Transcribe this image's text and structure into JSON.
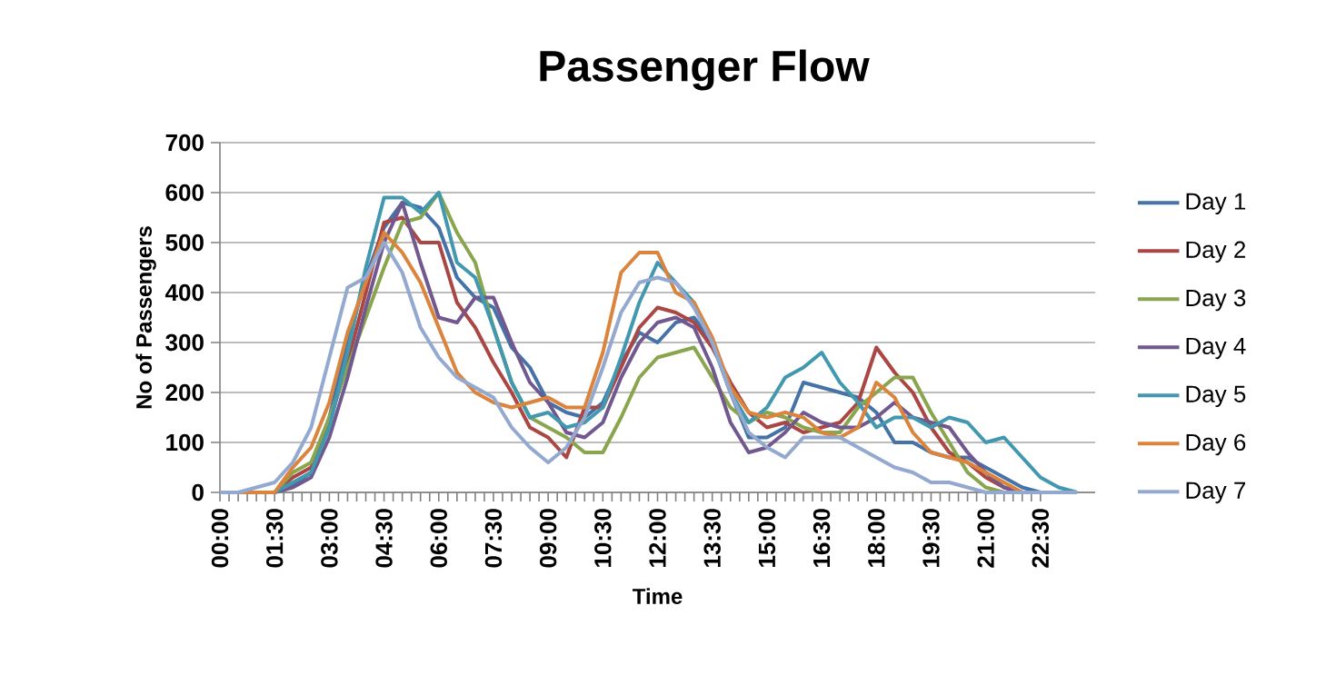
{
  "chart_data": {
    "type": "line",
    "title": "Passenger Flow",
    "xlabel": "Time",
    "ylabel": "No of Passengers",
    "x": [
      0,
      0.5,
      1,
      1.5,
      2,
      2.5,
      3,
      3.5,
      4,
      4.5,
      5,
      5.5,
      6,
      6.5,
      7,
      7.5,
      8,
      8.5,
      9,
      9.5,
      10,
      10.5,
      11,
      11.5,
      12,
      12.5,
      13,
      13.5,
      14,
      14.5,
      15,
      15.5,
      16,
      16.5,
      17,
      17.5,
      18,
      18.5,
      19,
      19.5,
      20,
      20.5,
      21,
      21.5,
      22,
      22.5,
      23,
      23.5
    ],
    "series": [
      {
        "name": "Day 1",
        "color": "#4572a7",
        "values": [
          0,
          0,
          0,
          0,
          15,
          40,
          150,
          300,
          430,
          530,
          580,
          570,
          530,
          430,
          390,
          370,
          290,
          250,
          180,
          160,
          150,
          180,
          260,
          320,
          300,
          340,
          350,
          300,
          200,
          110,
          110,
          130,
          220,
          210,
          200,
          190,
          160,
          100,
          100,
          80,
          70,
          70,
          50,
          30,
          10,
          0,
          0,
          0
        ]
      },
      {
        "name": "Day 2",
        "color": "#aa4643",
        "values": [
          0,
          0,
          0,
          0,
          30,
          50,
          140,
          260,
          400,
          540,
          550,
          500,
          500,
          380,
          330,
          260,
          200,
          130,
          110,
          70,
          170,
          170,
          250,
          330,
          370,
          360,
          340,
          290,
          220,
          160,
          130,
          140,
          120,
          130,
          140,
          180,
          290,
          240,
          200,
          130,
          80,
          60,
          30,
          10,
          0,
          0,
          null,
          null
        ]
      },
      {
        "name": "Day 3",
        "color": "#89a54e",
        "values": [
          null,
          null,
          0,
          0,
          40,
          60,
          150,
          250,
          350,
          450,
          540,
          550,
          600,
          520,
          460,
          330,
          220,
          150,
          130,
          110,
          80,
          80,
          150,
          230,
          270,
          280,
          290,
          230,
          170,
          140,
          160,
          150,
          130,
          120,
          120,
          170,
          200,
          230,
          230,
          160,
          100,
          40,
          10,
          0,
          0,
          0,
          null,
          null
        ]
      },
      {
        "name": "Day 4",
        "color": "#71588f",
        "values": [
          0,
          0,
          0,
          0,
          10,
          30,
          110,
          230,
          370,
          500,
          580,
          460,
          350,
          340,
          390,
          390,
          300,
          220,
          180,
          120,
          110,
          140,
          230,
          300,
          340,
          350,
          330,
          250,
          140,
          80,
          90,
          120,
          160,
          140,
          130,
          130,
          150,
          180,
          150,
          140,
          130,
          80,
          40,
          10,
          0,
          0,
          0,
          0
        ]
      },
      {
        "name": "Day 5",
        "color": "#4198af",
        "values": [
          0,
          0,
          0,
          0,
          20,
          40,
          130,
          280,
          450,
          590,
          590,
          560,
          600,
          460,
          430,
          330,
          220,
          150,
          160,
          130,
          140,
          170,
          270,
          380,
          460,
          420,
          380,
          300,
          200,
          140,
          170,
          230,
          250,
          280,
          220,
          180,
          130,
          150,
          150,
          130,
          150,
          140,
          100,
          110,
          70,
          30,
          10,
          0
        ]
      },
      {
        "name": "Day 6",
        "color": "#db843d",
        "values": [
          0,
          0,
          0,
          0,
          50,
          90,
          180,
          320,
          420,
          520,
          480,
          420,
          330,
          240,
          200,
          180,
          170,
          180,
          190,
          170,
          170,
          280,
          440,
          480,
          480,
          400,
          380,
          310,
          210,
          160,
          150,
          160,
          150,
          120,
          110,
          130,
          220,
          190,
          120,
          80,
          70,
          60,
          40,
          20,
          0,
          0,
          null,
          null
        ]
      },
      {
        "name": "Day 7",
        "color": "#93a9cf",
        "values": [
          0,
          0,
          10,
          20,
          60,
          130,
          270,
          410,
          430,
          500,
          440,
          330,
          270,
          230,
          210,
          190,
          130,
          90,
          60,
          90,
          150,
          250,
          360,
          420,
          430,
          420,
          370,
          300,
          200,
          120,
          90,
          70,
          110,
          110,
          110,
          90,
          70,
          50,
          40,
          20,
          20,
          10,
          0,
          0,
          0,
          0,
          0,
          0
        ]
      }
    ],
    "xlim": [
      0,
      24
    ],
    "xticks": [
      {
        "value": 0,
        "label": "00:00"
      },
      {
        "value": 1.5,
        "label": "01:30"
      },
      {
        "value": 3,
        "label": "03:00"
      },
      {
        "value": 4.5,
        "label": "04:30"
      },
      {
        "value": 6,
        "label": "06:00"
      },
      {
        "value": 7.5,
        "label": "07:30"
      },
      {
        "value": 9,
        "label": "09:00"
      },
      {
        "value": 10.5,
        "label": "10:30"
      },
      {
        "value": 12,
        "label": "12:00"
      },
      {
        "value": 13.5,
        "label": "13:30"
      },
      {
        "value": 15,
        "label": "15:00"
      },
      {
        "value": 16.5,
        "label": "16:30"
      },
      {
        "value": 18,
        "label": "18:00"
      },
      {
        "value": 19.5,
        "label": "19:30"
      },
      {
        "value": 21,
        "label": "21:00"
      },
      {
        "value": 22.5,
        "label": "22:30"
      }
    ],
    "ylim": [
      0,
      700
    ],
    "yticks": [
      0,
      100,
      200,
      300,
      400,
      500,
      600,
      700
    ],
    "grid": "y",
    "legend": "right",
    "marker": "none",
    "line_style": "solid"
  }
}
